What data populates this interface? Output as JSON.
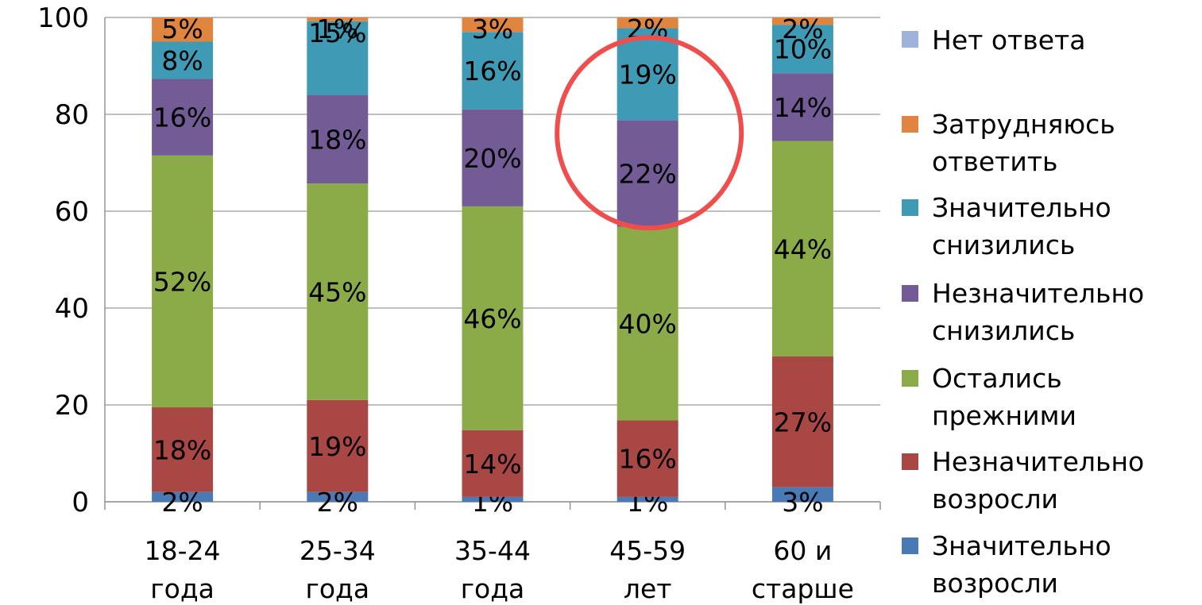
{
  "chart_data": {
    "type": "bar",
    "stacked": true,
    "categories": [
      [
        "18-24",
        "года"
      ],
      [
        "25-34",
        "года"
      ],
      [
        "35-44",
        "года"
      ],
      [
        "45-59",
        "лет"
      ],
      [
        "60 и",
        "старше"
      ]
    ],
    "ylim": [
      0,
      100
    ],
    "yticks": [
      "0",
      "20",
      "40",
      "60",
      "80",
      "100"
    ],
    "grid": true,
    "legend_position": "right",
    "series": [
      {
        "name": [
          "Значительно",
          "возросли"
        ],
        "color": "#4a7ab5",
        "values": [
          2,
          2,
          1,
          1,
          3
        ],
        "labels": [
          "2%",
          "2%",
          "1%",
          "1%",
          "3%"
        ]
      },
      {
        "name": [
          "Незначительно",
          "возросли"
        ],
        "color": "#a94744",
        "values": [
          17.5,
          19,
          13.8,
          15.8,
          27
        ],
        "labels": [
          "18%",
          "19%",
          "14%",
          "16%",
          "27%"
        ]
      },
      {
        "name": [
          "Остались",
          "прежними"
        ],
        "color": "#8bab49",
        "values": [
          52,
          44.7,
          46.2,
          40,
          44.5
        ],
        "labels": [
          "52%",
          "45%",
          "46%",
          "40%",
          "44%"
        ]
      },
      {
        "name": [
          "Незначительно",
          "снизились"
        ],
        "color": "#735c95",
        "values": [
          15.8,
          18.3,
          20,
          22,
          14
        ],
        "labels": [
          "16%",
          "18%",
          "20%",
          "22%",
          "14%"
        ]
      },
      {
        "name": [
          "Значительно",
          "снизились"
        ],
        "color": "#3f9bb5",
        "values": [
          7.7,
          15.2,
          16,
          19,
          10
        ],
        "labels": [
          "8%",
          "15%",
          "16%",
          "19%",
          "10%"
        ]
      },
      {
        "name": [
          "Затрудняюсь",
          "ответить"
        ],
        "color": "#e0853f",
        "values": [
          5,
          0.8,
          3,
          2.2,
          1.5
        ],
        "labels": [
          "5%",
          "1%",
          "3%",
          "2%",
          "2%"
        ]
      },
      {
        "name": [
          "Нет ответа"
        ],
        "color": "#9db3dc",
        "values": [
          0,
          0,
          0,
          0,
          0
        ],
        "labels": [
          "",
          "",
          "",
          "",
          ""
        ]
      }
    ],
    "annotation": {
      "type": "circle",
      "category_index": 3,
      "y_range": [
        56,
        99
      ],
      "color": "#f04d4d"
    }
  }
}
